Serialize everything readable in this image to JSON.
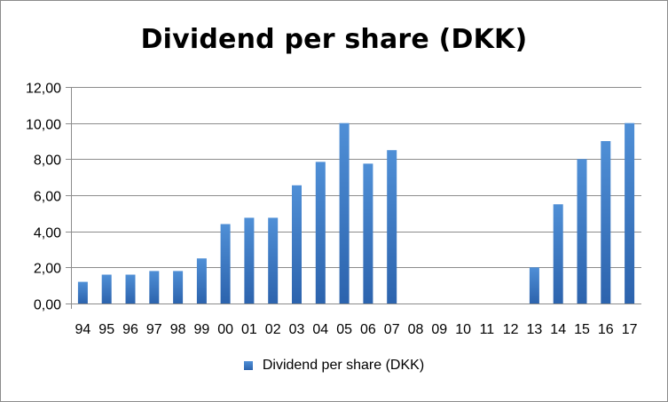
{
  "chart_data": {
    "type": "bar",
    "title": "Dividend per share (DKK)",
    "xlabel": "",
    "ylabel": "",
    "categories": [
      "94",
      "95",
      "96",
      "97",
      "98",
      "99",
      "00",
      "01",
      "02",
      "03",
      "04",
      "05",
      "06",
      "07",
      "08",
      "09",
      "10",
      "11",
      "12",
      "13",
      "14",
      "15",
      "16",
      "17"
    ],
    "series": [
      {
        "name": "Dividend per share (DKK)",
        "values": [
          1.2,
          1.6,
          1.6,
          1.8,
          1.8,
          2.5,
          4.4,
          4.75,
          4.75,
          6.55,
          7.85,
          10.0,
          7.75,
          8.5,
          0,
          0,
          0,
          0,
          0,
          2.0,
          5.5,
          8.0,
          9.0,
          10.0
        ]
      }
    ],
    "ylim": [
      0,
      12
    ],
    "yticks": [
      "0,00",
      "2,00",
      "4,00",
      "6,00",
      "8,00",
      "10,00",
      "12,00"
    ],
    "grid": true,
    "legend_position": "bottom",
    "bar_color_top": "#4f8fd6",
    "bar_color_bottom": "#2c63ad",
    "grid_color": "#8c8c8c"
  }
}
